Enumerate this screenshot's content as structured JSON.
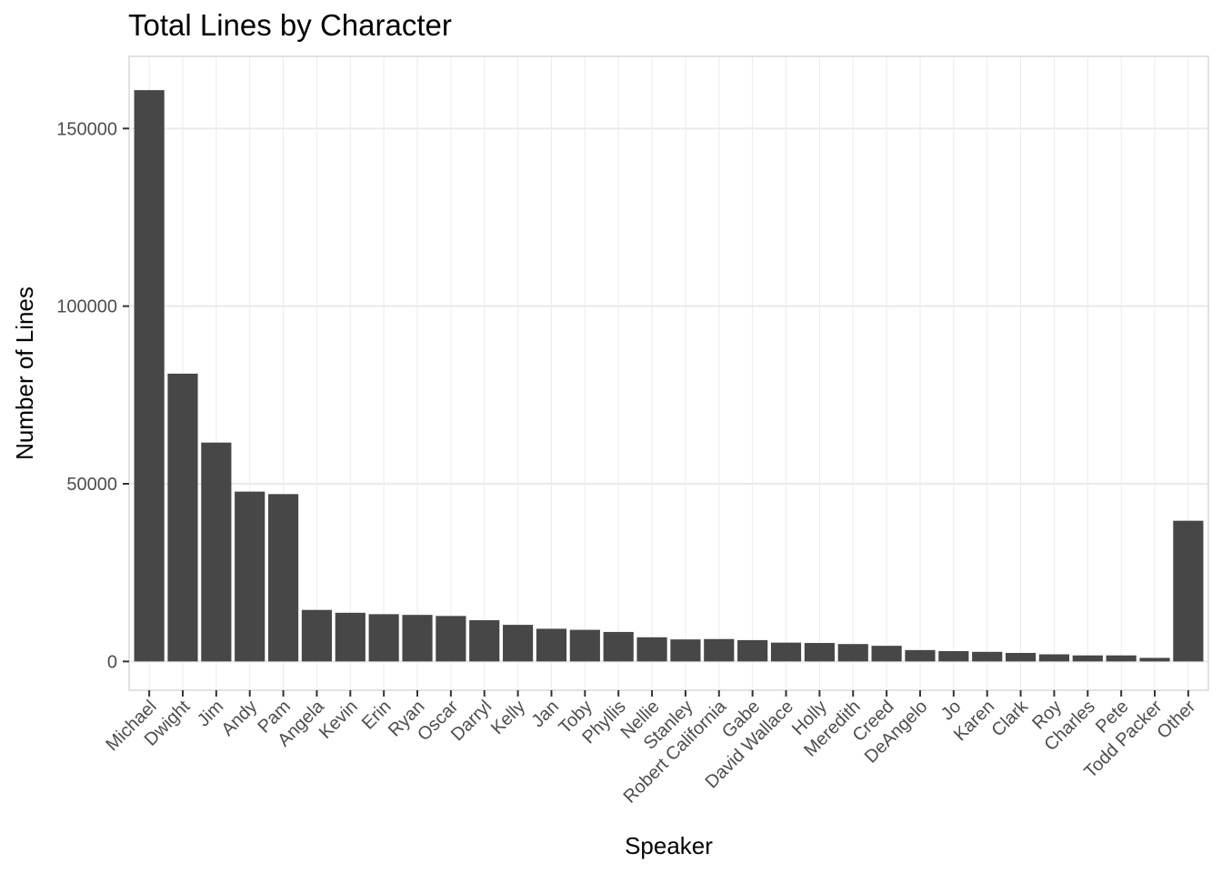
{
  "chart_data": {
    "type": "bar",
    "title": "Total Lines by Character",
    "xlabel": "Speaker",
    "ylabel": "Number of Lines",
    "categories": [
      "Michael",
      "Dwight",
      "Jim",
      "Andy",
      "Pam",
      "Angela",
      "Kevin",
      "Erin",
      "Ryan",
      "Oscar",
      "Darryl",
      "Kelly",
      "Jan",
      "Toby",
      "Phyllis",
      "Nellie",
      "Stanley",
      "Robert California",
      "Gabe",
      "David Wallace",
      "Holly",
      "Meredith",
      "Creed",
      "DeAngelo",
      "Jo",
      "Karen",
      "Clark",
      "Roy",
      "Charles",
      "Pete",
      "Todd Packer",
      "Other"
    ],
    "values": [
      160800,
      81000,
      61600,
      47800,
      47100,
      14500,
      13700,
      13300,
      13100,
      12800,
      11600,
      10300,
      9200,
      8900,
      8300,
      6800,
      6200,
      6300,
      6000,
      5300,
      5200,
      4900,
      4400,
      3200,
      2900,
      2700,
      2400,
      2000,
      1700,
      1700,
      1000,
      39600
    ],
    "yticks": [
      0,
      50000,
      100000,
      150000
    ],
    "ylim": [
      -8100,
      170300
    ],
    "grid": true,
    "legend": "none",
    "bar_color": "#474747",
    "grid_color": "#ebebeb",
    "panel_border_color": "#d9d9d9"
  }
}
